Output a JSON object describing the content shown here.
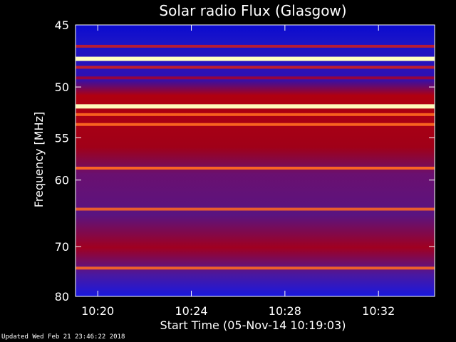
{
  "chart_data": {
    "type": "heatmap",
    "title": "Solar radio Flux (Glasgow)",
    "xlabel": "Start Time (05-Nov-14 10:19:03)",
    "ylabel": "Frequency [MHz]",
    "x_tick_labels": [
      "10:20",
      "10:24",
      "10:28",
      "10:32"
    ],
    "x_tick_minutes": [
      0.95,
      4.95,
      8.95,
      12.95
    ],
    "x_range_minutes": [
      0,
      15.35
    ],
    "y_ticks": [
      45,
      50,
      55,
      60,
      70,
      80
    ],
    "y_tick_labels": [
      "45",
      "50",
      "55",
      "60",
      "70",
      "80"
    ],
    "ylim": [
      45,
      80
    ],
    "y_scale": "reciprocal",
    "bands": [
      {
        "f": 46.6,
        "level": 0.55
      },
      {
        "f": 47.6,
        "level": 1.0
      },
      {
        "f": 48.3,
        "level": 0.6
      },
      {
        "f": 49.2,
        "level": 0.35
      },
      {
        "f": 51.8,
        "level": 0.95
      },
      {
        "f": 52.6,
        "level": 0.8
      },
      {
        "f": 53.6,
        "level": 0.85
      },
      {
        "f": 58.5,
        "level": 0.9
      },
      {
        "f": 64.0,
        "level": 0.7
      },
      {
        "f": 74.0,
        "level": 0.75
      }
    ],
    "grid": false
  },
  "footer": {
    "updated": "Updated Wed Feb 21 23:46:22 2018"
  },
  "colors": {
    "background": "#000000",
    "low": "#1010c8",
    "mid": "#c00000",
    "high": "#ffffc0"
  }
}
